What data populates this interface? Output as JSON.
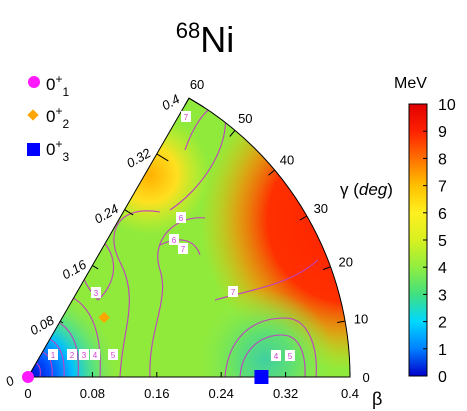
{
  "chart_data": {
    "type": "heatmap",
    "projection": "polar beta-gamma sextant",
    "title": {
      "mass": "68",
      "element": "Ni"
    },
    "colorbar": {
      "unit": "MeV",
      "min": 0,
      "max": 10,
      "ticks": [
        "0",
        "1",
        "2",
        "3",
        "4",
        "5",
        "6",
        "7",
        "8",
        "9",
        "10"
      ],
      "colors": [
        "#0000cc",
        "#0080ff",
        "#00d8ff",
        "#40e080",
        "#90ee40",
        "#d8f020",
        "#fff020",
        "#ffc000",
        "#ff7000",
        "#ff2000",
        "#e00000"
      ]
    },
    "beta_axis": {
      "label": "β",
      "range": [
        0,
        0.4
      ],
      "ticks": [
        "0",
        "0.08",
        "0.16",
        "0.24",
        "0.32",
        "0.4"
      ]
    },
    "beta_axis_diagonal": {
      "ticks": [
        "0",
        "0.08",
        "0.16",
        "0.24",
        "0.32",
        "0.4"
      ]
    },
    "gamma_axis": {
      "label_prefix": "γ",
      "label_unit": "deg",
      "range": [
        0,
        60
      ],
      "ticks": [
        "0",
        "10",
        "20",
        "30",
        "40",
        "50",
        "60"
      ]
    },
    "contour_labels": [
      "1",
      "2",
      "3",
      "4",
      "5",
      "6",
      "7",
      "3",
      "4",
      "5",
      "6",
      "7",
      "7"
    ],
    "legend": [
      {
        "label": "0",
        "sup": "+",
        "sub": "1",
        "marker": "circle",
        "color": "#ff1aff"
      },
      {
        "label": "0",
        "sup": "+",
        "sub": "2",
        "marker": "diamond",
        "color": "#ffa500"
      },
      {
        "label": "0",
        "sup": "+",
        "sub": "3",
        "marker": "square",
        "color": "#0000ff"
      }
    ],
    "states": [
      {
        "name": "0+1",
        "beta": 0.0,
        "gamma": 0
      },
      {
        "name": "0+2",
        "beta": 0.12,
        "gamma": 38
      },
      {
        "name": "0+3",
        "beta": 0.29,
        "gamma": 0
      }
    ]
  }
}
